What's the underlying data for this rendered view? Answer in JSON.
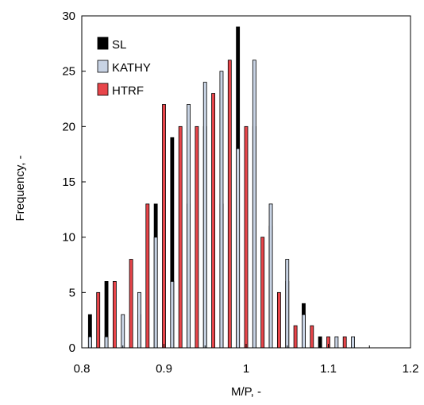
{
  "chart_data": {
    "type": "bar",
    "title": "",
    "xlabel": "M/P, -",
    "ylabel": "Frequency, -",
    "xlim": [
      0.8,
      1.2
    ],
    "ylim": [
      0,
      30
    ],
    "bin_width": 0.01,
    "x_ticks": [
      0.8,
      0.9,
      1.0,
      1.1,
      1.2
    ],
    "x_tick_labels": [
      "0.8",
      "0.9",
      "1",
      "1.1",
      "1.2"
    ],
    "y_ticks": [
      0,
      5,
      10,
      15,
      20,
      25,
      30
    ],
    "y_tick_labels": [
      "0",
      "5",
      "10",
      "15",
      "20",
      "25",
      "30"
    ],
    "legend_position": "top-left",
    "bins": [
      0.81,
      0.82,
      0.83,
      0.84,
      0.85,
      0.86,
      0.87,
      0.88,
      0.89,
      0.9,
      0.91,
      0.92,
      0.93,
      0.94,
      0.95,
      0.96,
      0.97,
      0.98,
      0.99,
      1.0,
      1.01,
      1.02,
      1.03,
      1.04,
      1.05,
      1.06,
      1.07,
      1.08,
      1.09,
      1.1,
      1.11,
      1.12,
      1.13,
      1.14,
      1.15,
      1.16
    ],
    "series": [
      {
        "name": "SL",
        "color": "#000000",
        "values": [
          3,
          0,
          6,
          0,
          0,
          0,
          3,
          0,
          13,
          0,
          19,
          0,
          13,
          0,
          20,
          0,
          13,
          0,
          29,
          0,
          20,
          0,
          11,
          0,
          6,
          0,
          4,
          0,
          1,
          0,
          0,
          0,
          0,
          0,
          0,
          0
        ]
      },
      {
        "name": "KATHY",
        "color": "#c8d3e4",
        "values": [
          1,
          0,
          1,
          0,
          3,
          0,
          5,
          0,
          10,
          0,
          6,
          0,
          22,
          0,
          24,
          0,
          25,
          0,
          18,
          0,
          26,
          0,
          13,
          0,
          8,
          0,
          3,
          0,
          0,
          0,
          1,
          0,
          1,
          0,
          0,
          0
        ]
      },
      {
        "name": "HTRF",
        "color": "#e8454a",
        "values": [
          0,
          5,
          0,
          6,
          0,
          8,
          0,
          13,
          0,
          22,
          0,
          20,
          0,
          20,
          0,
          23,
          0,
          26,
          0,
          20,
          0,
          10,
          0,
          5,
          0,
          2,
          0,
          2,
          0,
          1,
          0,
          1,
          0,
          0,
          0,
          0
        ]
      }
    ]
  }
}
